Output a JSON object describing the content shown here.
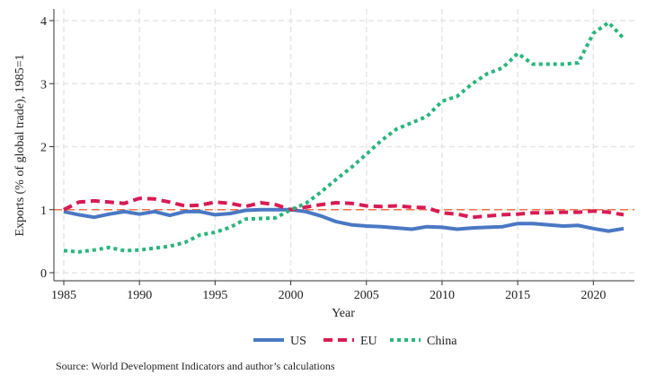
{
  "chart_data": {
    "type": "line",
    "title": "",
    "xlabel": "Year",
    "ylabel": "Exports (% of global trade), 1985=1",
    "xlim": [
      1985,
      2022
    ],
    "ylim": [
      0,
      4
    ],
    "xticks": [
      1985,
      1990,
      1995,
      2000,
      2005,
      2010,
      2015,
      2020
    ],
    "yticks": [
      0,
      1,
      2,
      3,
      4
    ],
    "grid": true,
    "legend_position": "bottom",
    "reference_line": {
      "y": 1,
      "color": "#f0704a"
    },
    "x": [
      1985,
      1986,
      1987,
      1988,
      1989,
      1990,
      1991,
      1992,
      1993,
      1994,
      1995,
      1996,
      1997,
      1998,
      1999,
      2000,
      2001,
      2002,
      2003,
      2004,
      2005,
      2006,
      2007,
      2008,
      2009,
      2010,
      2011,
      2012,
      2013,
      2014,
      2015,
      2016,
      2017,
      2018,
      2019,
      2020,
      2021,
      2022
    ],
    "series": [
      {
        "name": "US",
        "color": "#4a78c4",
        "style": "solid",
        "values": [
          0.97,
          0.92,
          0.88,
          0.93,
          0.97,
          0.93,
          0.97,
          0.91,
          0.97,
          0.97,
          0.92,
          0.94,
          0.99,
          1.0,
          1.0,
          1.0,
          0.97,
          0.9,
          0.81,
          0.76,
          0.74,
          0.73,
          0.71,
          0.69,
          0.73,
          0.72,
          0.69,
          0.71,
          0.72,
          0.73,
          0.78,
          0.78,
          0.76,
          0.74,
          0.75,
          0.7,
          0.66,
          0.7
        ]
      },
      {
        "name": "EU",
        "color": "#d81b54",
        "style": "dashed",
        "values": [
          1.0,
          1.12,
          1.14,
          1.12,
          1.1,
          1.18,
          1.17,
          1.12,
          1.06,
          1.07,
          1.12,
          1.1,
          1.05,
          1.11,
          1.08,
          1.0,
          1.04,
          1.08,
          1.11,
          1.1,
          1.06,
          1.05,
          1.06,
          1.04,
          1.03,
          0.95,
          0.93,
          0.88,
          0.9,
          0.92,
          0.93,
          0.95,
          0.95,
          0.96,
          0.96,
          0.98,
          0.96,
          0.92
        ]
      },
      {
        "name": "China",
        "color": "#2ab57d",
        "style": "dotted",
        "values": [
          0.35,
          0.33,
          0.36,
          0.4,
          0.35,
          0.36,
          0.39,
          0.42,
          0.48,
          0.6,
          0.64,
          0.72,
          0.85,
          0.86,
          0.87,
          1.0,
          1.1,
          1.28,
          1.48,
          1.67,
          1.88,
          2.1,
          2.28,
          2.38,
          2.48,
          2.72,
          2.8,
          3.0,
          3.16,
          3.25,
          3.48,
          3.31,
          3.31,
          3.31,
          3.33,
          3.8,
          3.97,
          3.72
        ]
      }
    ],
    "note": "Source: World Development Indicators and author’s calculations"
  }
}
